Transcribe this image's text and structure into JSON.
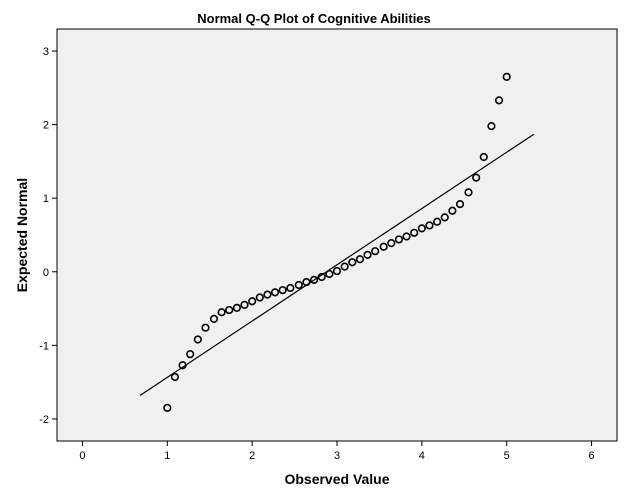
{
  "chart_data": {
    "type": "scatter",
    "title": "Normal Q-Q Plot of Cognitive Abilities",
    "xlabel": "Observed Value",
    "ylabel": "Expected Normal",
    "xlim": [
      -0.3,
      6.3
    ],
    "ylim": [
      -2.3,
      3.3
    ],
    "x_ticks": [
      0,
      1,
      2,
      3,
      4,
      5,
      6
    ],
    "y_ticks": [
      -2,
      -1,
      0,
      1,
      2,
      3
    ],
    "grid": false,
    "plot_background": "#f0f0f0",
    "marker_color": "#000000",
    "reference_line": {
      "x": [
        0.68,
        5.32
      ],
      "y": [
        -1.68,
        1.87
      ]
    },
    "points": [
      {
        "x": 1.0,
        "y": -1.85
      },
      {
        "x": 1.09,
        "y": -1.43
      },
      {
        "x": 1.18,
        "y": -1.27
      },
      {
        "x": 1.27,
        "y": -1.12
      },
      {
        "x": 1.36,
        "y": -0.92
      },
      {
        "x": 1.45,
        "y": -0.76
      },
      {
        "x": 1.55,
        "y": -0.64
      },
      {
        "x": 1.64,
        "y": -0.55
      },
      {
        "x": 1.73,
        "y": -0.52
      },
      {
        "x": 1.82,
        "y": -0.49
      },
      {
        "x": 1.91,
        "y": -0.45
      },
      {
        "x": 2.0,
        "y": -0.4
      },
      {
        "x": 2.09,
        "y": -0.35
      },
      {
        "x": 2.18,
        "y": -0.31
      },
      {
        "x": 2.27,
        "y": -0.28
      },
      {
        "x": 2.36,
        "y": -0.25
      },
      {
        "x": 2.45,
        "y": -0.22
      },
      {
        "x": 2.55,
        "y": -0.18
      },
      {
        "x": 2.64,
        "y": -0.14
      },
      {
        "x": 2.73,
        "y": -0.11
      },
      {
        "x": 2.82,
        "y": -0.07
      },
      {
        "x": 2.91,
        "y": -0.03
      },
      {
        "x": 3.0,
        "y": 0.01
      },
      {
        "x": 3.09,
        "y": 0.07
      },
      {
        "x": 3.18,
        "y": 0.13
      },
      {
        "x": 3.27,
        "y": 0.17
      },
      {
        "x": 3.36,
        "y": 0.23
      },
      {
        "x": 3.45,
        "y": 0.28
      },
      {
        "x": 3.55,
        "y": 0.34
      },
      {
        "x": 3.64,
        "y": 0.39
      },
      {
        "x": 3.73,
        "y": 0.44
      },
      {
        "x": 3.82,
        "y": 0.48
      },
      {
        "x": 3.91,
        "y": 0.53
      },
      {
        "x": 4.0,
        "y": 0.59
      },
      {
        "x": 4.09,
        "y": 0.63
      },
      {
        "x": 4.18,
        "y": 0.68
      },
      {
        "x": 4.27,
        "y": 0.74
      },
      {
        "x": 4.36,
        "y": 0.83
      },
      {
        "x": 4.45,
        "y": 0.92
      },
      {
        "x": 4.55,
        "y": 1.08
      },
      {
        "x": 4.64,
        "y": 1.28
      },
      {
        "x": 4.73,
        "y": 1.56
      },
      {
        "x": 4.82,
        "y": 1.98
      },
      {
        "x": 4.91,
        "y": 2.33
      },
      {
        "x": 5.0,
        "y": 2.65
      }
    ]
  }
}
